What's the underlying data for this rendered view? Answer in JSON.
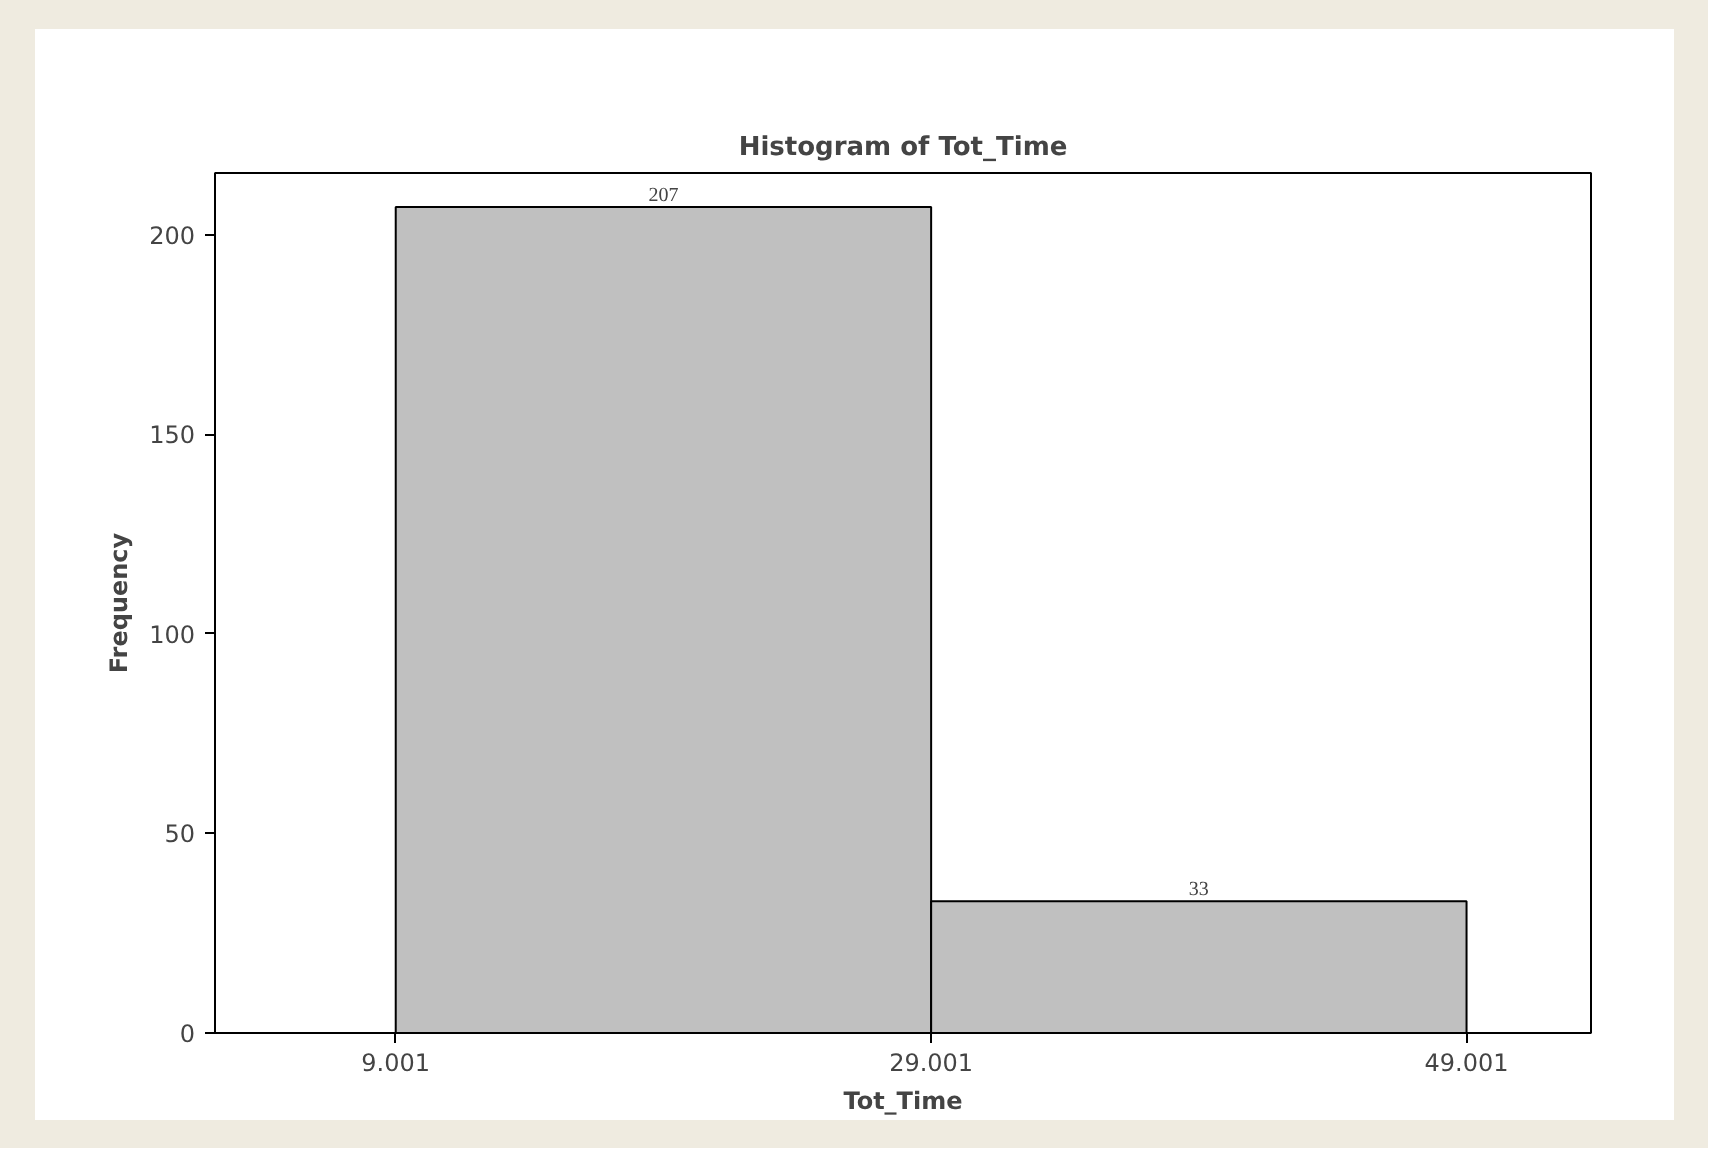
{
  "chart_data": {
    "type": "histogram",
    "title": "Histogram of Tot_Time",
    "xlabel": "Tot_Time",
    "ylabel": "Frequency",
    "bins": [
      9.001,
      29.001,
      49.001
    ],
    "values": [
      207,
      33
    ],
    "color": "#c0c0c0",
    "data_labels": true,
    "xlim": [
      2.25,
      53.65
    ],
    "xticks": [
      9.001,
      29.001,
      49.001
    ],
    "ylim": [
      0,
      215.5
    ],
    "yticks": [
      0,
      50,
      100,
      150,
      200
    ],
    "grid": false
  }
}
